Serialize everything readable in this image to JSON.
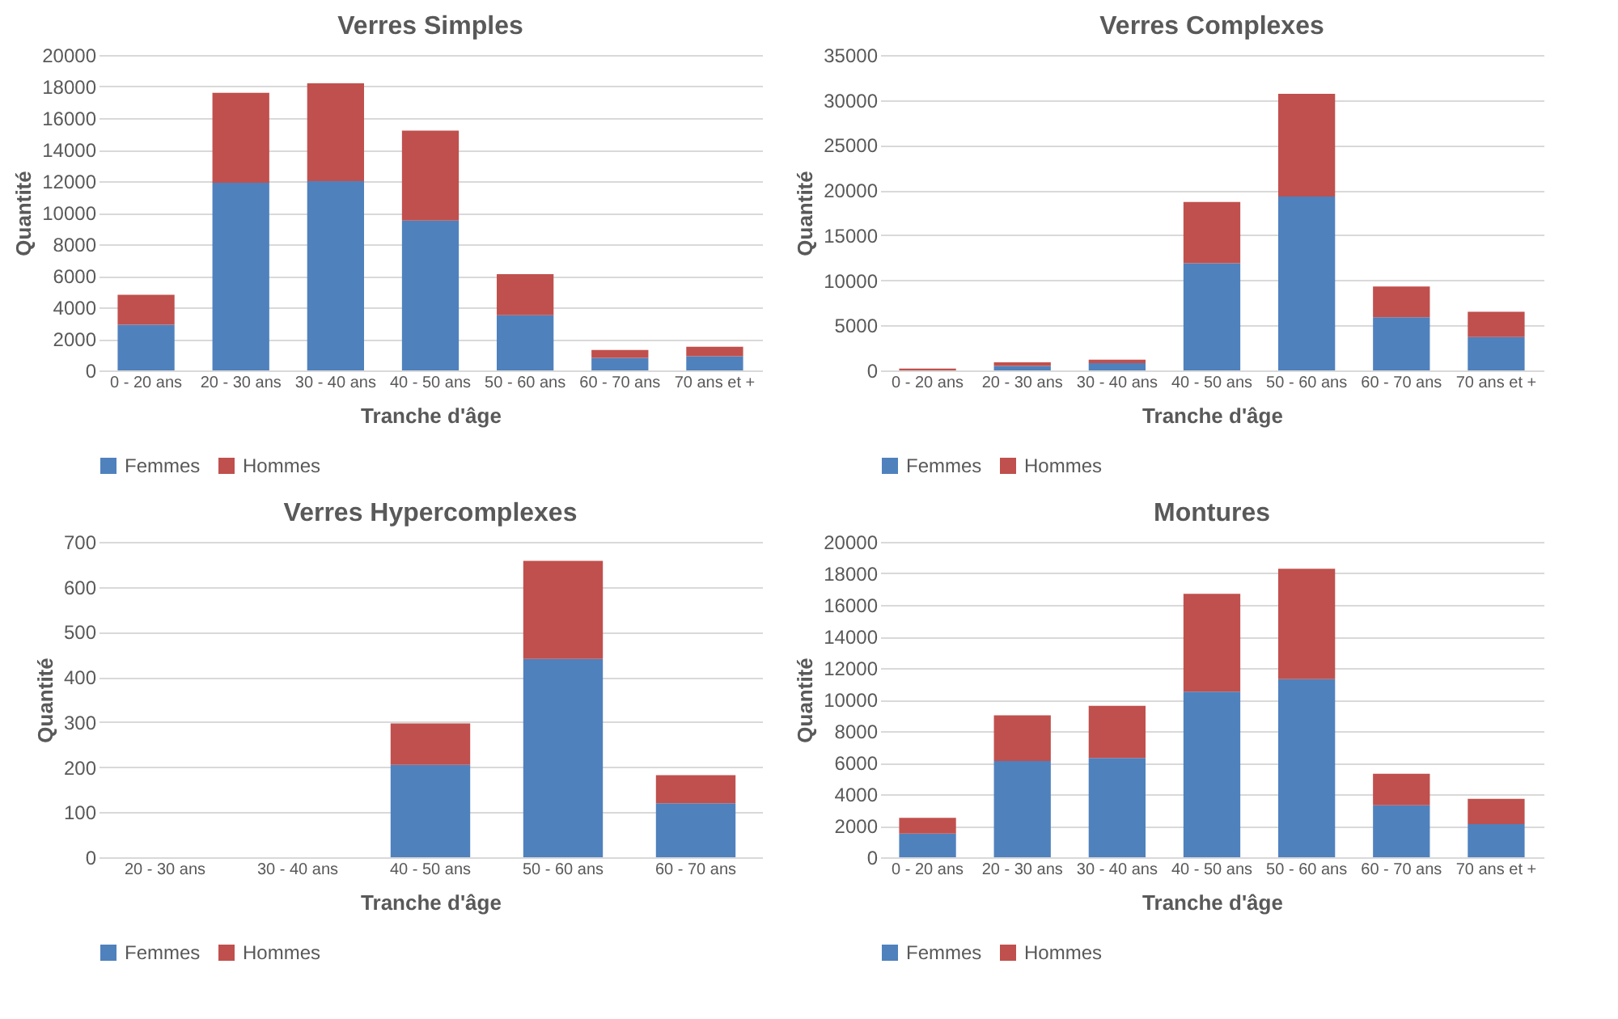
{
  "chart_data": [
    {
      "type": "bar",
      "stacked": true,
      "title": "Verres Simples",
      "xlabel": "Tranche d'âge",
      "ylabel": "Quantité",
      "categories": [
        "0 - 20 ans",
        "20 - 30 ans",
        "30 - 40 ans",
        "40 - 50 ans",
        "50 - 60 ans",
        "60 - 70 ans",
        "70 ans et +"
      ],
      "series": [
        {
          "name": "Femmes",
          "color": "#4f81bd",
          "values": [
            2900,
            11900,
            12000,
            9500,
            3500,
            800,
            900
          ]
        },
        {
          "name": "Hommes",
          "color": "#c0504d",
          "values": [
            1900,
            5700,
            6200,
            5700,
            2600,
            500,
            600
          ]
        }
      ],
      "ylim": [
        0,
        20000
      ],
      "yticks": [
        0,
        2000,
        4000,
        6000,
        8000,
        10000,
        12000,
        14000,
        16000,
        18000,
        20000
      ],
      "grid": "y",
      "legend": "bottom"
    },
    {
      "type": "bar",
      "stacked": true,
      "title": "Verres Complexes",
      "xlabel": "Tranche d'âge",
      "ylabel": "Quantité",
      "categories": [
        "0 - 20 ans",
        "20 - 30 ans",
        "30 - 40 ans",
        "40 - 50 ans",
        "50 - 60 ans",
        "60 - 70 ans",
        "70 ans et +"
      ],
      "series": [
        {
          "name": "Femmes",
          "color": "#4f81bd",
          "values": [
            0,
            500,
            800,
            11900,
            19300,
            5900,
            3700
          ]
        },
        {
          "name": "Hommes",
          "color": "#c0504d",
          "values": [
            200,
            400,
            400,
            6800,
            11400,
            3400,
            2800
          ]
        }
      ],
      "ylim": [
        0,
        35000
      ],
      "yticks": [
        0,
        5000,
        10000,
        15000,
        20000,
        25000,
        30000,
        35000
      ],
      "grid": "y",
      "legend": "bottom"
    },
    {
      "type": "bar",
      "stacked": true,
      "title": "Verres Hypercomplexes",
      "xlabel": "Tranche d'âge",
      "ylabel": "Quantité",
      "categories": [
        "20 - 30 ans",
        "30 - 40 ans",
        "40 - 50 ans",
        "50 - 60 ans",
        "60 - 70 ans"
      ],
      "series": [
        {
          "name": "Femmes",
          "color": "#4f81bd",
          "values": [
            0,
            0,
            205,
            440,
            120
          ]
        },
        {
          "name": "Hommes",
          "color": "#c0504d",
          "values": [
            0,
            0,
            92,
            218,
            62
          ]
        }
      ],
      "ylim": [
        0,
        700
      ],
      "yticks": [
        0,
        100,
        200,
        300,
        400,
        500,
        600,
        700
      ],
      "grid": "y",
      "legend": "bottom"
    },
    {
      "type": "bar",
      "stacked": true,
      "title": "Montures",
      "xlabel": "Tranche d'âge",
      "ylabel": "Quantité",
      "categories": [
        "0 - 20 ans",
        "20 - 30 ans",
        "30 - 40 ans",
        "40 - 50 ans",
        "50 - 60 ans",
        "60 - 70 ans",
        "70 ans et +"
      ],
      "series": [
        {
          "name": "Femmes",
          "color": "#4f81bd",
          "values": [
            1500,
            6100,
            6300,
            10500,
            11300,
            3300,
            2100
          ]
        },
        {
          "name": "Hommes",
          "color": "#c0504d",
          "values": [
            1000,
            2900,
            3300,
            6200,
            7000,
            2000,
            1600
          ]
        }
      ],
      "ylim": [
        0,
        20000
      ],
      "yticks": [
        0,
        2000,
        4000,
        6000,
        8000,
        10000,
        12000,
        14000,
        16000,
        18000,
        20000
      ],
      "grid": "y",
      "legend": "bottom"
    }
  ]
}
